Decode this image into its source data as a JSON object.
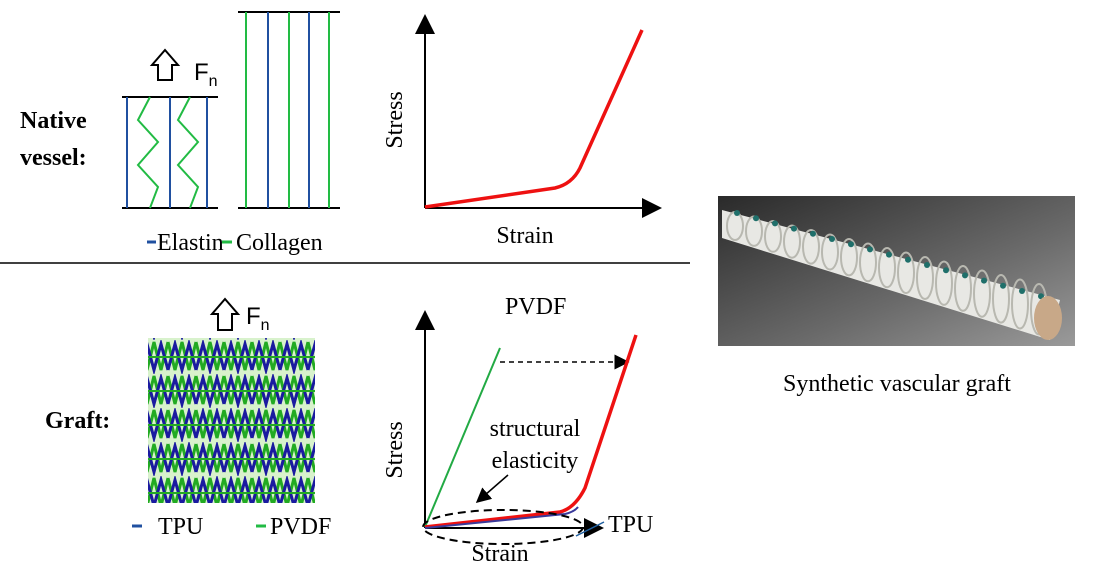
{
  "top": {
    "force_label": "F",
    "force_subscript": "n",
    "title_lines": [
      "Native",
      "vessel:"
    ],
    "y_axis": "Stress",
    "x_axis": "Strain",
    "legend": [
      "Elastin",
      "Collagen"
    ]
  },
  "bottom": {
    "force_label": "F",
    "force_subscript": "n",
    "title": "Graft:",
    "y_axis": "Stress",
    "x_axis": "Strain",
    "legend": [
      "TPU",
      "PVDF"
    ],
    "curve_labels": {
      "pvdf": "PVDF",
      "tpu": "TPU"
    },
    "annotation_lines": [
      "structural",
      "elasticity"
    ]
  },
  "photo": {
    "caption": "Synthetic vascular graft"
  }
}
